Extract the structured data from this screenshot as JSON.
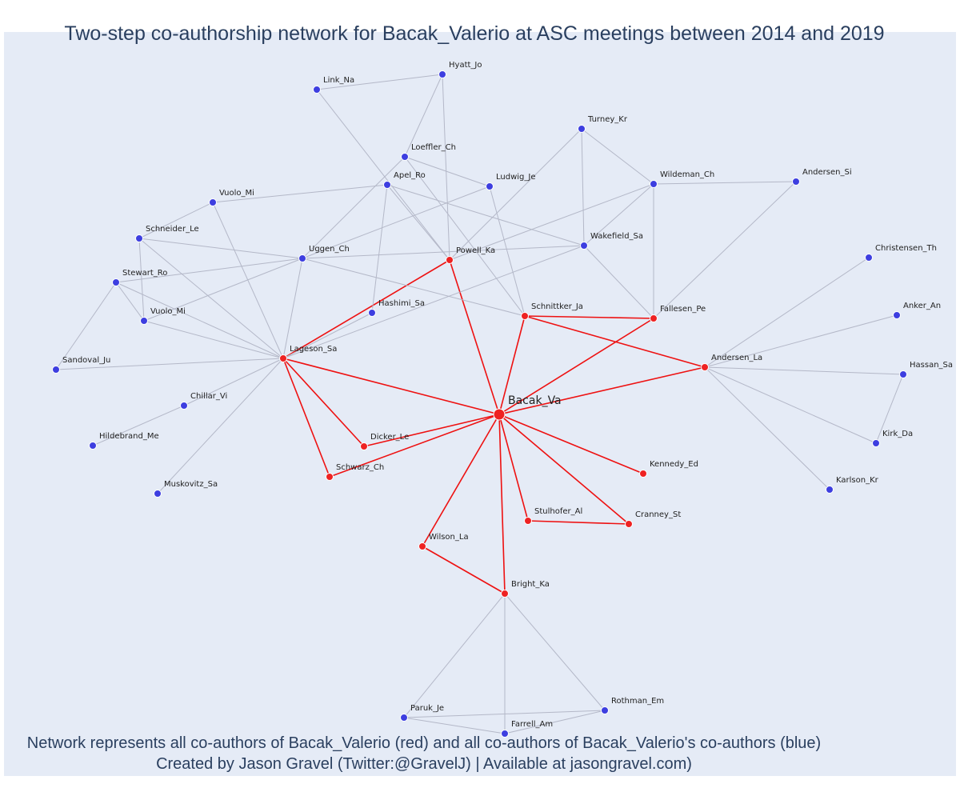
{
  "title": "Two-step co-authorship network for Bacak_Valerio at ASC meetings between 2014 and 2019",
  "caption": {
    "line1": "Network represents all co-authors of Bacak_Valerio (red) and all co-authors of Bacak_Valerio's co-authors (blue)",
    "line2": "Created by Jason Gravel (Twitter:@GravelJ) | Available at jasongravel.com)"
  },
  "colors": {
    "background": "#e5ebf6",
    "coauthor": "#ee2222",
    "second_step": "#3d3ee0",
    "coauthor_edge": "#ee1111",
    "second_step_edge": "#b4b8c8",
    "text": "#2a3f5f"
  },
  "nodes": [
    {
      "id": "Bacak_Va",
      "label": "Bacak_Va",
      "group": "center"
    },
    {
      "id": "Lageson_Sa",
      "label": "Lageson_Sa",
      "group": "coauthor"
    },
    {
      "id": "Powell_Ka",
      "label": "Powell_Ka",
      "group": "coauthor"
    },
    {
      "id": "Schnittker_Ja",
      "label": "Schnittker_Ja",
      "group": "coauthor"
    },
    {
      "id": "Fallesen_Pe",
      "label": "Fallesen_Pe",
      "group": "coauthor"
    },
    {
      "id": "Andersen_La",
      "label": "Andersen_La",
      "group": "coauthor"
    },
    {
      "id": "Dicker_Le",
      "label": "Dicker_Le",
      "group": "coauthor"
    },
    {
      "id": "Schwarz_Ch",
      "label": "Schwarz_Ch",
      "group": "coauthor"
    },
    {
      "id": "Kennedy_Ed",
      "label": "Kennedy_Ed",
      "group": "coauthor"
    },
    {
      "id": "Stulhofer_Al",
      "label": "Stulhofer_Al",
      "group": "coauthor"
    },
    {
      "id": "Cranney_St",
      "label": "Cranney_St",
      "group": "coauthor"
    },
    {
      "id": "Wilson_La",
      "label": "Wilson_La",
      "group": "coauthor"
    },
    {
      "id": "Bright_Ka",
      "label": "Bright_Ka",
      "group": "coauthor"
    },
    {
      "id": "Hyatt_Jo",
      "label": "Hyatt_Jo",
      "group": "second"
    },
    {
      "id": "Link_Na",
      "label": "Link_Na",
      "group": "second"
    },
    {
      "id": "Turney_Kr",
      "label": "Turney_Kr",
      "group": "second"
    },
    {
      "id": "Loeffler_Ch",
      "label": "Loeffler_Ch",
      "group": "second"
    },
    {
      "id": "Apel_Ro",
      "label": "Apel_Ro",
      "group": "second"
    },
    {
      "id": "Ludwig_Je",
      "label": "Ludwig_Je",
      "group": "second"
    },
    {
      "id": "Wildeman_Ch",
      "label": "Wildeman_Ch",
      "group": "second"
    },
    {
      "id": "Andersen_Si",
      "label": "Andersen_Si",
      "group": "second"
    },
    {
      "id": "Vuolo_Mi_1",
      "label": "Vuolo_Mi",
      "group": "second"
    },
    {
      "id": "Schneider_Le",
      "label": "Schneider_Le",
      "group": "second"
    },
    {
      "id": "Uggen_Ch",
      "label": "Uggen_Ch",
      "group": "second"
    },
    {
      "id": "Wakefield_Sa",
      "label": "Wakefield_Sa",
      "group": "second"
    },
    {
      "id": "Christensen_Th",
      "label": "Christensen_Th",
      "group": "second"
    },
    {
      "id": "Stewart_Ro",
      "label": "Stewart_Ro",
      "group": "second"
    },
    {
      "id": "Hashimi_Sa",
      "label": "Hashimi_Sa",
      "group": "second"
    },
    {
      "id": "Vuolo_Mi_2",
      "label": "Vuolo_Mi",
      "group": "second"
    },
    {
      "id": "Anker_An",
      "label": "Anker_An",
      "group": "second"
    },
    {
      "id": "Sandoval_Ju",
      "label": "Sandoval_Ju",
      "group": "second"
    },
    {
      "id": "Hassan_Sa",
      "label": "Hassan_Sa",
      "group": "second"
    },
    {
      "id": "Chillar_Vi",
      "label": "Chillar_Vi",
      "group": "second"
    },
    {
      "id": "Hildebrand_Me",
      "label": "Hildebrand_Me",
      "group": "second"
    },
    {
      "id": "Kirk_Da",
      "label": "Kirk_Da",
      "group": "second"
    },
    {
      "id": "Muskovitz_Sa",
      "label": "Muskovitz_Sa",
      "group": "second"
    },
    {
      "id": "Karlson_Kr",
      "label": "Karlson_Kr",
      "group": "second"
    },
    {
      "id": "Paruk_Je",
      "label": "Paruk_Je",
      "group": "second"
    },
    {
      "id": "Rothman_Em",
      "label": "Rothman_Em",
      "group": "second"
    },
    {
      "id": "Farrell_Am",
      "label": "Farrell_Am",
      "group": "second"
    }
  ],
  "edges": [
    [
      "Bacak_Va",
      "Lageson_Sa"
    ],
    [
      "Bacak_Va",
      "Powell_Ka"
    ],
    [
      "Bacak_Va",
      "Schnittker_Ja"
    ],
    [
      "Bacak_Va",
      "Fallesen_Pe"
    ],
    [
      "Bacak_Va",
      "Andersen_La"
    ],
    [
      "Bacak_Va",
      "Dicker_Le"
    ],
    [
      "Bacak_Va",
      "Schwarz_Ch"
    ],
    [
      "Bacak_Va",
      "Kennedy_Ed"
    ],
    [
      "Bacak_Va",
      "Stulhofer_Al"
    ],
    [
      "Bacak_Va",
      "Cranney_St"
    ],
    [
      "Bacak_Va",
      "Wilson_La"
    ],
    [
      "Bacak_Va",
      "Bright_Ka"
    ],
    [
      "Lageson_Sa",
      "Powell_Ka"
    ],
    [
      "Lageson_Sa",
      "Dicker_Le"
    ],
    [
      "Lageson_Sa",
      "Schwarz_Ch"
    ],
    [
      "Schnittker_Ja",
      "Fallesen_Pe"
    ],
    [
      "Schnittker_Ja",
      "Andersen_La"
    ],
    [
      "Stulhofer_Al",
      "Cranney_St"
    ],
    [
      "Wilson_La",
      "Bright_Ka"
    ],
    [
      "Hyatt_Jo",
      "Link_Na"
    ],
    [
      "Hyatt_Jo",
      "Loeffler_Ch"
    ],
    [
      "Hyatt_Jo",
      "Powell_Ka"
    ],
    [
      "Link_Na",
      "Powell_Ka"
    ],
    [
      "Turney_Kr",
      "Wildeman_Ch"
    ],
    [
      "Turney_Kr",
      "Wakefield_Sa"
    ],
    [
      "Turney_Kr",
      "Powell_Ka"
    ],
    [
      "Loeffler_Ch",
      "Ludwig_Je"
    ],
    [
      "Loeffler_Ch",
      "Uggen_Ch"
    ],
    [
      "Loeffler_Ch",
      "Schnittker_Ja"
    ],
    [
      "Apel_Ro",
      "Vuolo_Mi_1"
    ],
    [
      "Apel_Ro",
      "Hashimi_Sa"
    ],
    [
      "Apel_Ro",
      "Powell_Ka"
    ],
    [
      "Apel_Ro",
      "Wakefield_Sa"
    ],
    [
      "Ludwig_Je",
      "Uggen_Ch"
    ],
    [
      "Ludwig_Je",
      "Schnittker_Ja"
    ],
    [
      "Wildeman_Ch",
      "Andersen_Si"
    ],
    [
      "Wildeman_Ch",
      "Wakefield_Sa"
    ],
    [
      "Wildeman_Ch",
      "Fallesen_Pe"
    ],
    [
      "Wildeman_Ch",
      "Powell_Ka"
    ],
    [
      "Andersen_Si",
      "Fallesen_Pe"
    ],
    [
      "Vuolo_Mi_1",
      "Schneider_Le"
    ],
    [
      "Vuolo_Mi_1",
      "Lageson_Sa"
    ],
    [
      "Schneider_Le",
      "Uggen_Ch"
    ],
    [
      "Schneider_Le",
      "Vuolo_Mi_2"
    ],
    [
      "Schneider_Le",
      "Lageson_Sa"
    ],
    [
      "Uggen_Ch",
      "Stewart_Ro"
    ],
    [
      "Uggen_Ch",
      "Vuolo_Mi_2"
    ],
    [
      "Uggen_Ch",
      "Lageson_Sa"
    ],
    [
      "Uggen_Ch",
      "Schnittker_Ja"
    ],
    [
      "Uggen_Ch",
      "Wakefield_Sa"
    ],
    [
      "Wakefield_Sa",
      "Fallesen_Pe"
    ],
    [
      "Wakefield_Sa",
      "Lageson_Sa"
    ],
    [
      "Christensen_Th",
      "Andersen_La"
    ],
    [
      "Stewart_Ro",
      "Vuolo_Mi_2"
    ],
    [
      "Stewart_Ro",
      "Sandoval_Ju"
    ],
    [
      "Stewart_Ro",
      "Lageson_Sa"
    ],
    [
      "Hashimi_Sa",
      "Lageson_Sa"
    ],
    [
      "Vuolo_Mi_2",
      "Lageson_Sa"
    ],
    [
      "Anker_An",
      "Andersen_La"
    ],
    [
      "Sandoval_Ju",
      "Lageson_Sa"
    ],
    [
      "Hassan_Sa",
      "Andersen_La"
    ],
    [
      "Hassan_Sa",
      "Kirk_Da"
    ],
    [
      "Chillar_Vi",
      "Lageson_Sa"
    ],
    [
      "Chillar_Vi",
      "Hildebrand_Me"
    ],
    [
      "Kirk_Da",
      "Andersen_La"
    ],
    [
      "Muskovitz_Sa",
      "Lageson_Sa"
    ],
    [
      "Karlson_Kr",
      "Andersen_La"
    ],
    [
      "Paruk_Je",
      "Bright_Ka"
    ],
    [
      "Paruk_Je",
      "Rothman_Em"
    ],
    [
      "Paruk_Je",
      "Farrell_Am"
    ],
    [
      "Rothman_Em",
      "Bright_Ka"
    ],
    [
      "Rothman_Em",
      "Farrell_Am"
    ],
    [
      "Farrell_Am",
      "Bright_Ka"
    ]
  ]
}
